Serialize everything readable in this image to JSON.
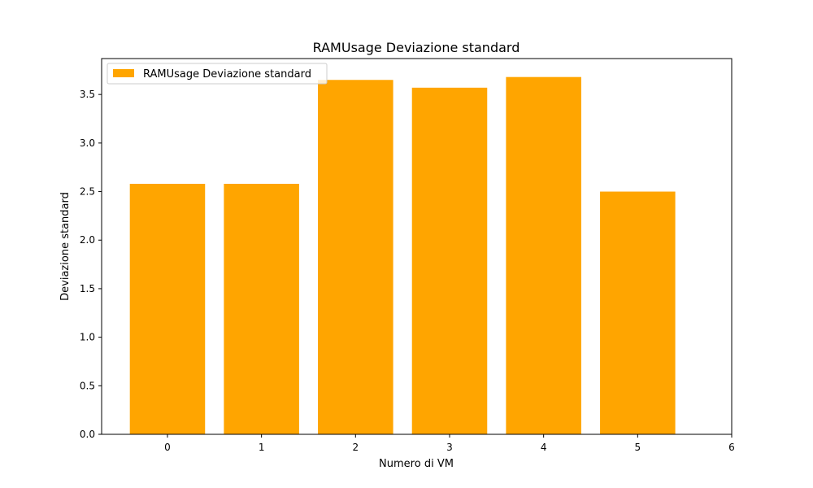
{
  "chart_data": {
    "type": "bar",
    "title": "RAMUsage Deviazione standard",
    "xlabel": "Numero di VM",
    "ylabel": "Deviazione standard",
    "categories": [
      0,
      1,
      2,
      3,
      4,
      5
    ],
    "series": [
      {
        "name": "RAMUsage Deviazione standard",
        "values": [
          2.58,
          2.58,
          3.65,
          3.57,
          3.68,
          2.5
        ],
        "color": "#ffa500"
      }
    ],
    "xlim": [
      -0.7,
      6
    ],
    "ylim": [
      0,
      3.87
    ],
    "xticks": [
      0,
      1,
      2,
      3,
      4,
      5,
      6
    ],
    "yticks": [
      0.0,
      0.5,
      1.0,
      1.5,
      2.0,
      2.5,
      3.0,
      3.5
    ],
    "xtick_labels": [
      "0",
      "1",
      "2",
      "3",
      "4",
      "5",
      "6"
    ],
    "ytick_labels": [
      "0.0",
      "0.5",
      "1.0",
      "1.5",
      "2.0",
      "2.5",
      "3.0",
      "3.5"
    ],
    "bar_width": 0.8,
    "grid": false,
    "legend_position": "top-left"
  }
}
